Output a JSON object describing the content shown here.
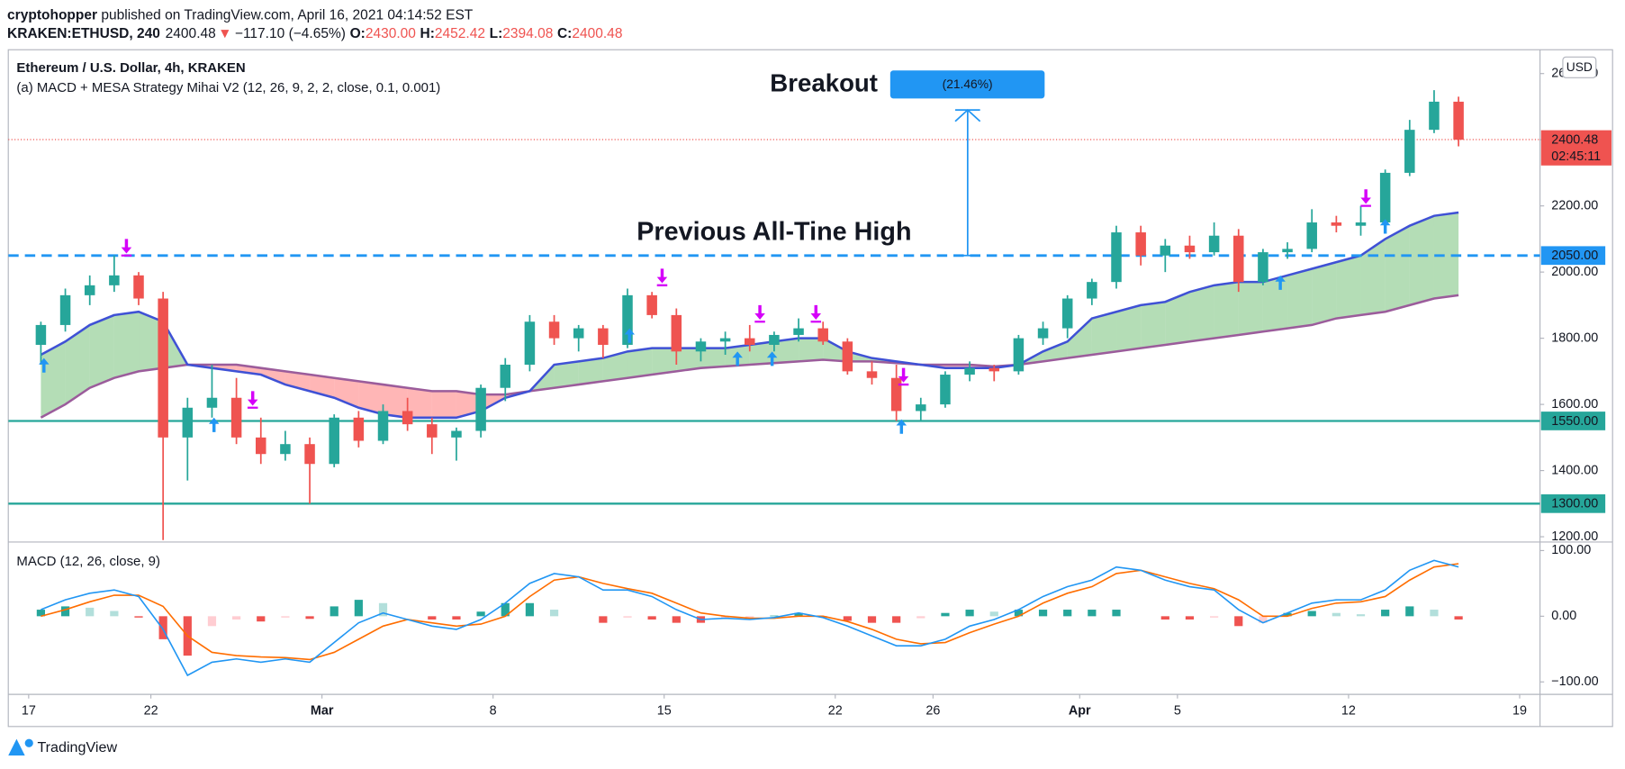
{
  "header": {
    "publisher": "cryptohopper",
    "published": " published on TradingView.com, April 16, 2021 04:14:52 EST",
    "symbol": "KRAKEN:ETHUSD, 240",
    "last": "2400.48",
    "direction": "▼",
    "change": "−117.10 (−4.65%)",
    "open_label": "O:",
    "open": "2430.00",
    "high_label": "H:",
    "high": "2452.42",
    "low_label": "L:",
    "low": "2394.08",
    "close_label": "C:",
    "close": "2400.48"
  },
  "footer": {
    "brand": "TradingView"
  },
  "chart_data": {
    "type": "candlestick",
    "title": "Ethereum / U.S. Dollar, 4h, KRAKEN",
    "subtitle": "(a) MACD + MESA Strategy Mihai V2 (12, 26, 9, 2, 2, close, 0.1, 0.001)",
    "currency": "USD",
    "up_color": "#26a69a",
    "down_color": "#ef5350",
    "x": [
      "02-17 12:00",
      "02-18 12:00",
      "02-19 12:00",
      "02-20 12:00",
      "02-21 12:00",
      "02-22 12:00",
      "02-23 12:00",
      "02-24 12:00",
      "02-25 12:00",
      "02-26 12:00",
      "02-27 12:00",
      "02-28 12:00",
      "03-01 12:00",
      "03-02 12:00",
      "03-03 12:00",
      "03-04 12:00",
      "03-05 12:00",
      "03-06 12:00",
      "03-07 12:00",
      "03-08 12:00",
      "03-09 12:00",
      "03-10 12:00",
      "03-11 12:00",
      "03-12 12:00",
      "03-13 12:00",
      "03-14 12:00",
      "03-15 12:00",
      "03-16 12:00",
      "03-17 12:00",
      "03-18 12:00",
      "03-19 12:00",
      "03-20 12:00",
      "03-21 12:00",
      "03-22 12:00",
      "03-23 12:00",
      "03-24 12:00",
      "03-25 12:00",
      "03-26 12:00",
      "03-27 12:00",
      "03-28 12:00",
      "03-29 12:00",
      "03-30 12:00",
      "03-31 12:00",
      "04-01 12:00",
      "04-02 12:00",
      "04-03 12:00",
      "04-04 12:00",
      "04-05 12:00",
      "04-06 12:00",
      "04-07 12:00",
      "04-08 12:00",
      "04-09 12:00",
      "04-10 12:00",
      "04-11 12:00",
      "04-12 12:00",
      "04-13 12:00",
      "04-14 12:00",
      "04-15 12:00",
      "04-16 12:00"
    ],
    "open": [
      1780,
      1840,
      1930,
      1960,
      1990,
      1920,
      1500,
      1590,
      1620,
      1500,
      1450,
      1480,
      1420,
      1560,
      1490,
      1580,
      1540,
      1500,
      1520,
      1650,
      1720,
      1850,
      1800,
      1830,
      1780,
      1930,
      1870,
      1760,
      1790,
      1800,
      1780,
      1810,
      1830,
      1790,
      1700,
      1680,
      1580,
      1600,
      1690,
      1710,
      1700,
      1800,
      1830,
      1920,
      1970,
      2120,
      2050,
      2080,
      2060,
      2110,
      1970,
      2060,
      2070,
      2150,
      2140,
      2150,
      2300,
      2430,
      2515
    ],
    "high": [
      1850,
      1950,
      1990,
      2050,
      2000,
      1940,
      1620,
      1720,
      1680,
      1560,
      1520,
      1500,
      1570,
      1580,
      1600,
      1620,
      1560,
      1530,
      1660,
      1740,
      1870,
      1870,
      1840,
      1840,
      1950,
      1940,
      1890,
      1800,
      1820,
      1840,
      1820,
      1860,
      1850,
      1800,
      1730,
      1720,
      1620,
      1700,
      1730,
      1720,
      1810,
      1850,
      1930,
      1980,
      2140,
      2140,
      2100,
      2110,
      2150,
      2130,
      2070,
      2090,
      2190,
      2170,
      2200,
      2310,
      2460,
      2550,
      2530
    ],
    "low": [
      1720,
      1820,
      1900,
      1940,
      1900,
      1190,
      1370,
      1560,
      1480,
      1420,
      1430,
      1300,
      1410,
      1470,
      1480,
      1520,
      1450,
      1430,
      1500,
      1610,
      1700,
      1780,
      1760,
      1740,
      1770,
      1860,
      1720,
      1730,
      1750,
      1760,
      1760,
      1790,
      1780,
      1690,
      1660,
      1550,
      1550,
      1590,
      1670,
      1670,
      1690,
      1780,
      1800,
      1900,
      1950,
      2020,
      2000,
      2040,
      2050,
      1940,
      1960,
      2040,
      2060,
      2120,
      2110,
      2140,
      2290,
      2420,
      2380
    ],
    "close": [
      1840,
      1930,
      1960,
      1990,
      1920,
      1500,
      1590,
      1620,
      1500,
      1450,
      1480,
      1420,
      1560,
      1490,
      1580,
      1540,
      1500,
      1520,
      1650,
      1720,
      1850,
      1800,
      1830,
      1780,
      1930,
      1870,
      1760,
      1790,
      1800,
      1780,
      1810,
      1830,
      1790,
      1700,
      1680,
      1580,
      1600,
      1690,
      1710,
      1700,
      1800,
      1830,
      1920,
      1970,
      2120,
      2050,
      2080,
      2060,
      2110,
      1970,
      2060,
      2070,
      2150,
      2140,
      2150,
      2300,
      2430,
      2515,
      2400
    ],
    "cloud_upper": {
      "color": "#3f51d5",
      "values": [
        1750,
        1790,
        1840,
        1870,
        1880,
        1850,
        1720,
        1710,
        1700,
        1690,
        1660,
        1640,
        1620,
        1590,
        1570,
        1560,
        1560,
        1560,
        1580,
        1620,
        1640,
        1720,
        1730,
        1740,
        1760,
        1770,
        1770,
        1770,
        1770,
        1780,
        1790,
        1800,
        1800,
        1760,
        1740,
        1730,
        1720,
        1710,
        1710,
        1710,
        1720,
        1760,
        1790,
        1860,
        1880,
        1900,
        1910,
        1940,
        1960,
        1970,
        1970,
        1990,
        2010,
        2030,
        2050,
        2100,
        2140,
        2170,
        2180
      ]
    },
    "cloud_lower": {
      "color": "#9b5c9b",
      "values": [
        1560,
        1600,
        1650,
        1680,
        1700,
        1710,
        1720,
        1720,
        1720,
        1710,
        1700,
        1690,
        1680,
        1670,
        1660,
        1650,
        1640,
        1640,
        1630,
        1630,
        1640,
        1650,
        1660,
        1670,
        1680,
        1690,
        1700,
        1710,
        1715,
        1720,
        1725,
        1730,
        1735,
        1730,
        1730,
        1725,
        1720,
        1720,
        1720,
        1715,
        1720,
        1730,
        1740,
        1750,
        1760,
        1770,
        1780,
        1790,
        1800,
        1810,
        1820,
        1830,
        1840,
        1860,
        1870,
        1880,
        1900,
        1920,
        1930
      ]
    },
    "cloud_colors": {
      "bull": "rgba(76,175,80,0.42)",
      "bear": "rgba(255,82,82,0.42)"
    },
    "signals": {
      "buy_color": "#2196f3",
      "sell_color": "#d500f9",
      "buy": [
        {
          "x": "02-17 15:00",
          "price": 1740
        },
        {
          "x": "02-24 14:00",
          "price": 1560
        },
        {
          "x": "03-13 14:00",
          "price": 1830
        },
        {
          "x": "03-18 00:00",
          "price": 1760
        },
        {
          "x": "03-19 10:00",
          "price": 1760
        },
        {
          "x": "03-24 17:00",
          "price": 1555
        },
        {
          "x": "04-09 05:00",
          "price": 1990
        },
        {
          "x": "04-13 12:00",
          "price": 2160
        }
      ],
      "sell": [
        {
          "x": "02-21 00:00",
          "price": 2050
        },
        {
          "x": "02-26 04:00",
          "price": 1590
        },
        {
          "x": "03-14 22:00",
          "price": 1960
        },
        {
          "x": "03-18 22:00",
          "price": 1850
        },
        {
          "x": "03-21 05:00",
          "price": 1850
        },
        {
          "x": "03-24 19:00",
          "price": 1660
        },
        {
          "x": "04-12 17:00",
          "price": 2200
        }
      ]
    },
    "levels": [
      {
        "value": 2050,
        "label": "2050.00",
        "color": "#2196f3",
        "style": "dashed"
      },
      {
        "value": 1550,
        "label": "1550.00",
        "color": "#26a69a",
        "style": "solid"
      },
      {
        "value": 1300,
        "label": "1300.00",
        "color": "#26a69a",
        "style": "solid"
      }
    ],
    "current_price": {
      "value": 2400.48,
      "label": "2400.48",
      "countdown": "02:45:11",
      "color": "#ef5350"
    },
    "annotations": {
      "breakout": "Breakout",
      "percent": "(21.46%)",
      "percent_color": "#2196f3",
      "ath": "Previous All-Tine High",
      "arrow": {
        "x": "03-27 10:00",
        "from": 2050,
        "to": 2490,
        "color": "#2196f3"
      }
    },
    "xlim": [
      "02-16 04:00",
      "04-19 20:00"
    ],
    "xticks": [
      {
        "value": "02-17 00:00",
        "label": "17"
      },
      {
        "value": "02-22 00:00",
        "label": "22"
      },
      {
        "value": "03-01 00:00",
        "label": "Mar"
      },
      {
        "value": "03-08 00:00",
        "label": "8"
      },
      {
        "value": "03-15 00:00",
        "label": "15"
      },
      {
        "value": "03-22 00:00",
        "label": "22"
      },
      {
        "value": "03-26 00:00",
        "label": "26"
      },
      {
        "value": "04-01 00:00",
        "label": "Apr"
      },
      {
        "value": "04-05 00:00",
        "label": "5"
      },
      {
        "value": "04-12 00:00",
        "label": "12"
      },
      {
        "value": "04-19 00:00",
        "label": "19"
      }
    ],
    "ylim": [
      1184,
      2672
    ],
    "yticks": [
      {
        "value": 1200,
        "label": "1200.00"
      },
      {
        "value": 1400,
        "label": "1400.00"
      },
      {
        "value": 1600,
        "label": "1600.00"
      },
      {
        "value": 1800,
        "label": "1800.00"
      },
      {
        "value": 2000,
        "label": "2000.00"
      },
      {
        "value": 2200,
        "label": "2200.00"
      },
      {
        "value": 2400,
        "label": "2400.00"
      },
      {
        "value": 2600,
        "label": "2600.00"
      }
    ],
    "macd": {
      "title": "MACD (12, 26, close, 9)",
      "ylim": [
        -119,
        113
      ],
      "yticks": [
        {
          "value": -100,
          "label": "−100.00"
        },
        {
          "value": 0,
          "label": "0.00"
        },
        {
          "value": 100,
          "label": "100.00"
        }
      ],
      "macd_color": "#2196f3",
      "signal_color": "#ff6d00",
      "hist_colors": {
        "up_strong": "#26a69a",
        "up_weak": "#b2dfdb",
        "down_strong": "#ef5350",
        "down_weak": "#ffcdd2"
      },
      "macd": [
        10,
        25,
        35,
        40,
        30,
        -20,
        -90,
        -70,
        -65,
        -70,
        -65,
        -70,
        -40,
        -10,
        5,
        -5,
        -15,
        -20,
        -5,
        20,
        50,
        65,
        60,
        40,
        40,
        30,
        10,
        -5,
        -3,
        -5,
        -2,
        5,
        -2,
        -15,
        -30,
        -45,
        -45,
        -35,
        -15,
        -5,
        10,
        30,
        45,
        55,
        75,
        70,
        55,
        45,
        40,
        10,
        -10,
        5,
        20,
        25,
        25,
        40,
        70,
        85,
        75
      ],
      "signal": [
        0,
        10,
        22,
        32,
        32,
        15,
        -30,
        -55,
        -60,
        -62,
        -63,
        -66,
        -55,
        -35,
        -15,
        -5,
        -10,
        -15,
        -12,
        0,
        30,
        55,
        60,
        50,
        42,
        35,
        20,
        5,
        0,
        -3,
        -3,
        0,
        0,
        -8,
        -20,
        -35,
        -42,
        -40,
        -25,
        -12,
        0,
        20,
        35,
        45,
        65,
        70,
        60,
        50,
        42,
        25,
        0,
        0,
        12,
        20,
        22,
        30,
        55,
        75,
        80
      ],
      "histogram": [
        10,
        15,
        13,
        8,
        -2,
        -35,
        -60,
        -15,
        -5,
        -8,
        -2,
        -4,
        15,
        25,
        20,
        0,
        -5,
        -5,
        7,
        20,
        20,
        10,
        0,
        -10,
        -2,
        -5,
        -10,
        -10,
        -3,
        -2,
        1,
        5,
        -2,
        -7,
        -10,
        -10,
        -3,
        5,
        10,
        7,
        10,
        10,
        10,
        10,
        10,
        0,
        -5,
        -5,
        -2,
        -15,
        -10,
        5,
        8,
        5,
        3,
        10,
        15,
        10,
        -5
      ]
    }
  }
}
